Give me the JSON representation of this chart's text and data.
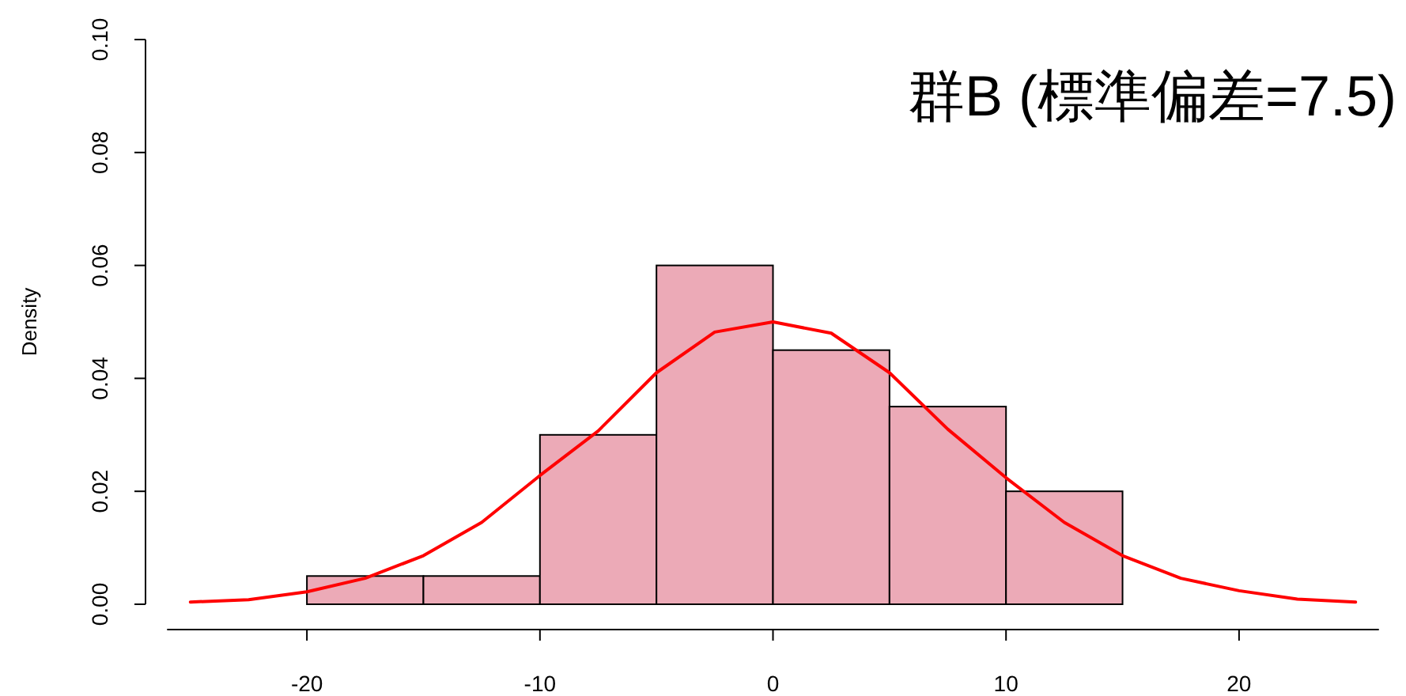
{
  "chart_data": {
    "type": "histogram",
    "title": "群B (標準偏差=7.5)",
    "ylabel": "Density",
    "bins": [
      -20,
      -15,
      -10,
      -5,
      0,
      5,
      10,
      15
    ],
    "values": [
      0.005,
      0.005,
      0.03,
      0.06,
      0.045,
      0.035,
      0.02
    ],
    "color": "#ecaab7",
    "series": [
      {
        "type": "line",
        "color": "#ff0000",
        "x": [
          -25,
          -22.5,
          -20,
          -17.5,
          -15,
          -12.5,
          -10,
          -7.5,
          -5,
          -2.5,
          0,
          2.5,
          5,
          7.5,
          10,
          12.5,
          15,
          17.5,
          20,
          22.5,
          25
        ],
        "values": [
          0.0004,
          0.0008,
          0.0022,
          0.0046,
          0.0086,
          0.0145,
          0.0228,
          0.0307,
          0.041,
          0.0482,
          0.05,
          0.048,
          0.041,
          0.031,
          0.0224,
          0.0145,
          0.0086,
          0.0046,
          0.0024,
          0.0009,
          0.0004
        ]
      }
    ],
    "xlim": [
      -26,
      26
    ],
    "ylim": [
      0,
      0.1
    ],
    "xticks": [
      -20,
      -10,
      0,
      10,
      20
    ],
    "yticks": [
      {
        "value": 0,
        "label": "0.00"
      },
      {
        "value": 0.02,
        "label": "0.02"
      },
      {
        "value": 0.04,
        "label": "0.04"
      },
      {
        "value": 0.06,
        "label": "0.06"
      },
      {
        "value": 0.08,
        "label": "0.08"
      },
      {
        "value": 0.1,
        "label": "0.10"
      }
    ]
  }
}
